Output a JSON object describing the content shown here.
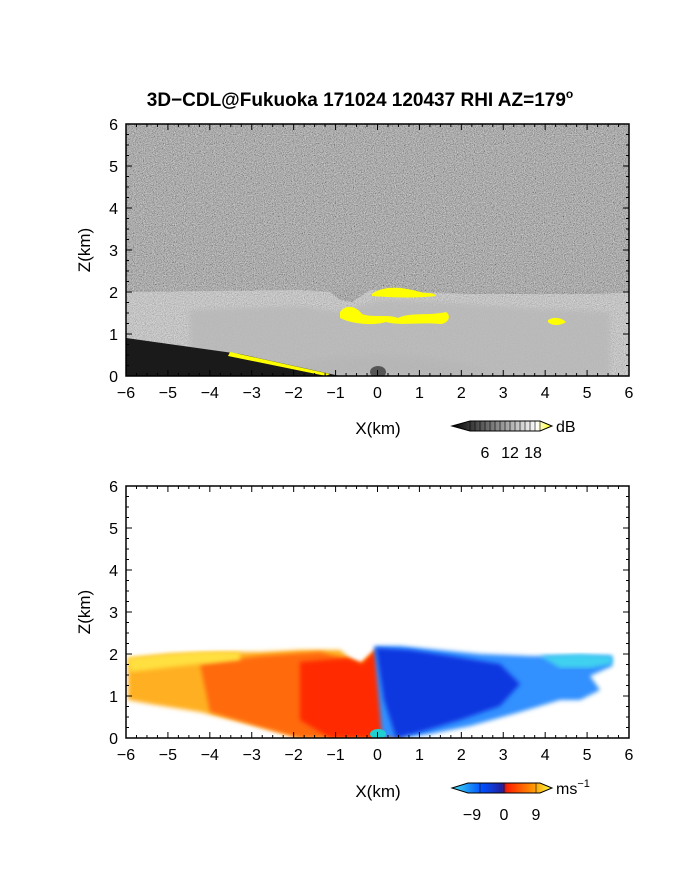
{
  "chart_data": {
    "title": "3D−CDL@Fukuoka 171024 120437 RHI AZ=179",
    "title_superscript": "o",
    "panels": [
      {
        "type": "heatmap",
        "variable": "reflectivity (grayscale)",
        "xlabel": "X(km)",
        "ylabel": "Z(km)",
        "xlim": [
          -6,
          6
        ],
        "ylim": [
          0,
          6
        ],
        "xticks": [
          -6,
          -5,
          -4,
          -3,
          -2,
          -1,
          0,
          1,
          2,
          3,
          4,
          5,
          6
        ],
        "yticks": [
          0,
          1,
          2,
          3,
          4,
          5,
          6
        ],
        "colorbar": {
          "unit": "dB",
          "ticks": [
            6,
            12,
            18
          ],
          "colors": [
            "#000000",
            "#ffffff",
            "#ffff00"
          ]
        },
        "features": {
          "layer_top_km": 2.0,
          "highlight_color": "#ffff00",
          "highlight_regions": [
            {
              "x": [
                -0.1,
                1.4
              ],
              "z": [
                1.9,
                2.1
              ]
            },
            {
              "x": [
                -0.9,
                1.7
              ],
              "z": [
                1.2,
                1.6
              ]
            },
            {
              "x": [
                4.0,
                4.5
              ],
              "z": [
                1.25,
                1.4
              ]
            },
            {
              "x": [
                -3.6,
                -1.0
              ],
              "z": [
                0.0,
                0.55
              ]
            }
          ]
        }
      },
      {
        "type": "heatmap",
        "variable": "Doppler velocity",
        "xlabel": "X(km)",
        "ylabel": "Z(km)",
        "xlim": [
          -6,
          6
        ],
        "ylim": [
          0,
          6
        ],
        "xticks": [
          -6,
          -5,
          -4,
          -3,
          -2,
          -1,
          0,
          1,
          2,
          3,
          4,
          5,
          6
        ],
        "yticks": [
          0,
          1,
          2,
          3,
          4,
          5,
          6
        ],
        "colorbar": {
          "unit": "ms",
          "unit_superscript": "−1",
          "ticks": [
            "−9",
            "0",
            "9"
          ],
          "colors": [
            "#40e0f0",
            "#0060ff",
            "#ff2000",
            "#ffff40"
          ]
        },
        "features": {
          "left_side": "positive (orange/yellow, receding)",
          "right_side": "negative (blue/cyan, approaching)",
          "layer_top_km": 2.0,
          "max_echo_left_km": -5.9,
          "max_echo_right_km": 5.8
        }
      }
    ]
  }
}
